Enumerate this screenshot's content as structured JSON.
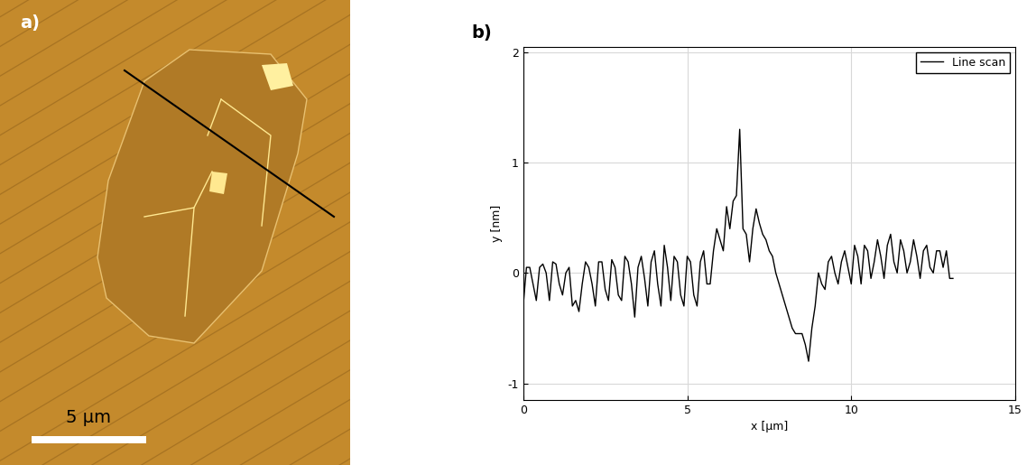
{
  "panel_labels": [
    "a)",
    "b)"
  ],
  "image": {
    "scale_bar_label": "5 μm"
  },
  "chart_data": {
    "type": "line",
    "x": [
      0.0,
      0.1,
      0.2,
      0.3,
      0.4,
      0.5,
      0.6,
      0.7,
      0.8,
      0.9,
      1.0,
      1.1,
      1.2,
      1.3,
      1.4,
      1.5,
      1.6,
      1.7,
      1.8,
      1.9,
      2.0,
      2.1,
      2.2,
      2.3,
      2.4,
      2.5,
      2.6,
      2.7,
      2.8,
      2.9,
      3.0,
      3.1,
      3.2,
      3.3,
      3.4,
      3.5,
      3.6,
      3.7,
      3.8,
      3.9,
      4.0,
      4.1,
      4.2,
      4.3,
      4.4,
      4.5,
      4.6,
      4.7,
      4.8,
      4.9,
      5.0,
      5.1,
      5.2,
      5.3,
      5.4,
      5.5,
      5.6,
      5.7,
      5.8,
      5.9,
      6.0,
      6.1,
      6.2,
      6.3,
      6.4,
      6.5,
      6.6,
      6.7,
      6.8,
      6.9,
      7.0,
      7.1,
      7.2,
      7.3,
      7.4,
      7.5,
      7.6,
      7.7,
      7.8,
      7.9,
      8.0,
      8.1,
      8.2,
      8.3,
      8.4,
      8.5,
      8.6,
      8.7,
      8.8,
      8.9,
      9.0,
      9.1,
      9.2,
      9.3,
      9.4,
      9.5,
      9.6,
      9.7,
      9.8,
      9.9,
      10.0,
      10.1,
      10.2,
      10.3,
      10.4,
      10.5,
      10.6,
      10.7,
      10.8,
      10.9,
      11.0,
      11.1,
      11.2,
      11.3,
      11.4,
      11.5,
      11.6,
      11.7,
      11.8,
      11.9,
      12.0,
      12.1,
      12.2,
      12.3,
      12.4,
      12.5,
      12.6,
      12.7,
      12.8,
      12.9,
      13.0,
      13.1
    ],
    "series": [
      {
        "name": "Line scan",
        "color": "#000000",
        "values": [
          -0.3,
          0.05,
          0.05,
          -0.1,
          -0.25,
          0.05,
          0.08,
          0.0,
          -0.25,
          0.1,
          0.08,
          -0.1,
          -0.2,
          0.0,
          0.05,
          -0.3,
          -0.25,
          -0.35,
          -0.1,
          0.1,
          0.05,
          -0.1,
          -0.3,
          0.1,
          0.1,
          -0.15,
          -0.25,
          0.12,
          0.05,
          -0.2,
          -0.25,
          0.15,
          0.1,
          -0.1,
          -0.4,
          0.05,
          0.15,
          -0.05,
          -0.3,
          0.1,
          0.2,
          -0.1,
          -0.3,
          0.25,
          0.05,
          -0.25,
          0.15,
          0.1,
          -0.2,
          -0.3,
          0.15,
          0.1,
          -0.2,
          -0.3,
          0.1,
          0.2,
          -0.1,
          -0.1,
          0.2,
          0.4,
          0.3,
          0.2,
          0.6,
          0.4,
          0.65,
          0.7,
          1.3,
          0.4,
          0.35,
          0.1,
          0.4,
          0.58,
          0.45,
          0.35,
          0.3,
          0.2,
          0.15,
          0.0,
          -0.1,
          -0.2,
          -0.3,
          -0.4,
          -0.5,
          -0.55,
          -0.55,
          -0.55,
          -0.65,
          -0.8,
          -0.5,
          -0.3,
          0.0,
          -0.1,
          -0.15,
          0.1,
          0.15,
          0.0,
          -0.1,
          0.1,
          0.2,
          0.05,
          -0.1,
          0.25,
          0.15,
          -0.1,
          0.25,
          0.2,
          -0.05,
          0.1,
          0.3,
          0.15,
          -0.05,
          0.25,
          0.35,
          0.1,
          0.0,
          0.3,
          0.2,
          0.0,
          0.1,
          0.3,
          0.15,
          -0.05,
          0.2,
          0.25,
          0.05,
          0.0,
          0.2,
          0.2,
          0.05,
          0.2,
          -0.05,
          -0.05
        ]
      }
    ],
    "x_label": "x [μm]",
    "y_label": "y [nm]",
    "xlim": [
      0,
      15
    ],
    "ylim": [
      -1.15,
      2.05
    ],
    "xticks": [
      0,
      5,
      10,
      15
    ],
    "yticks": [
      -1,
      0,
      1,
      2
    ],
    "grid": true,
    "legend": "upper right"
  }
}
